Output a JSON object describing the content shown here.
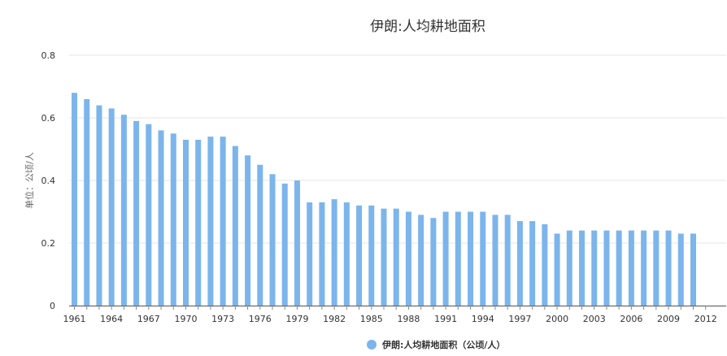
{
  "chart_data": {
    "type": "bar",
    "title": "伊朗:人均耕地面积",
    "ylabel": "单位：公顷/人",
    "legend": "伊朗:人均耕地面积（公顷/人）",
    "legend_position": "bottom-center",
    "grid": true,
    "color": "#7cb5ec",
    "ylim": [
      0,
      0.8
    ],
    "yticks": [
      "0",
      "0.2",
      "0.4",
      "0.6",
      "0.8"
    ],
    "xticks": [
      "1961",
      "1964",
      "1967",
      "1970",
      "1973",
      "1976",
      "1979",
      "1982",
      "1985",
      "1988",
      "1991",
      "1994",
      "1997",
      "2000",
      "2003",
      "2006",
      "2009",
      "2012"
    ],
    "categories": [
      "1961",
      "1962",
      "1963",
      "1964",
      "1965",
      "1966",
      "1967",
      "1968",
      "1969",
      "1970",
      "1971",
      "1972",
      "1973",
      "1974",
      "1975",
      "1976",
      "1977",
      "1978",
      "1979",
      "1980",
      "1981",
      "1982",
      "1983",
      "1984",
      "1985",
      "1986",
      "1987",
      "1988",
      "1989",
      "1990",
      "1991",
      "1992",
      "1993",
      "1994",
      "1995",
      "1996",
      "1997",
      "1998",
      "1999",
      "2000",
      "2001",
      "2002",
      "2003",
      "2004",
      "2005",
      "2006",
      "2007",
      "2008",
      "2009",
      "2010",
      "2011"
    ],
    "values": [
      0.68,
      0.66,
      0.64,
      0.63,
      0.61,
      0.59,
      0.58,
      0.56,
      0.55,
      0.53,
      0.53,
      0.54,
      0.54,
      0.51,
      0.48,
      0.45,
      0.42,
      0.39,
      0.4,
      0.33,
      0.33,
      0.34,
      0.33,
      0.32,
      0.32,
      0.31,
      0.31,
      0.3,
      0.29,
      0.28,
      0.3,
      0.3,
      0.3,
      0.3,
      0.29,
      0.29,
      0.27,
      0.27,
      0.26,
      0.23,
      0.24,
      0.24,
      0.24,
      0.24,
      0.24,
      0.24,
      0.24,
      0.24,
      0.24,
      0.23,
      0.23
    ]
  }
}
